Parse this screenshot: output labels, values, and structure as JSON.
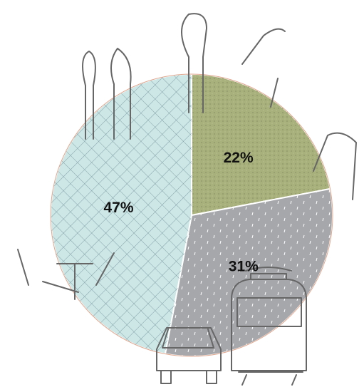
{
  "chart_data": {
    "type": "pie",
    "categories": [
      null,
      null,
      null
    ],
    "values": [
      22,
      31,
      47
    ],
    "value_labels": [
      "22%",
      "31%",
      "47%"
    ],
    "colors": [
      "#a8b07c",
      "#a6a7ab",
      "#cde6e6"
    ]
  }
}
